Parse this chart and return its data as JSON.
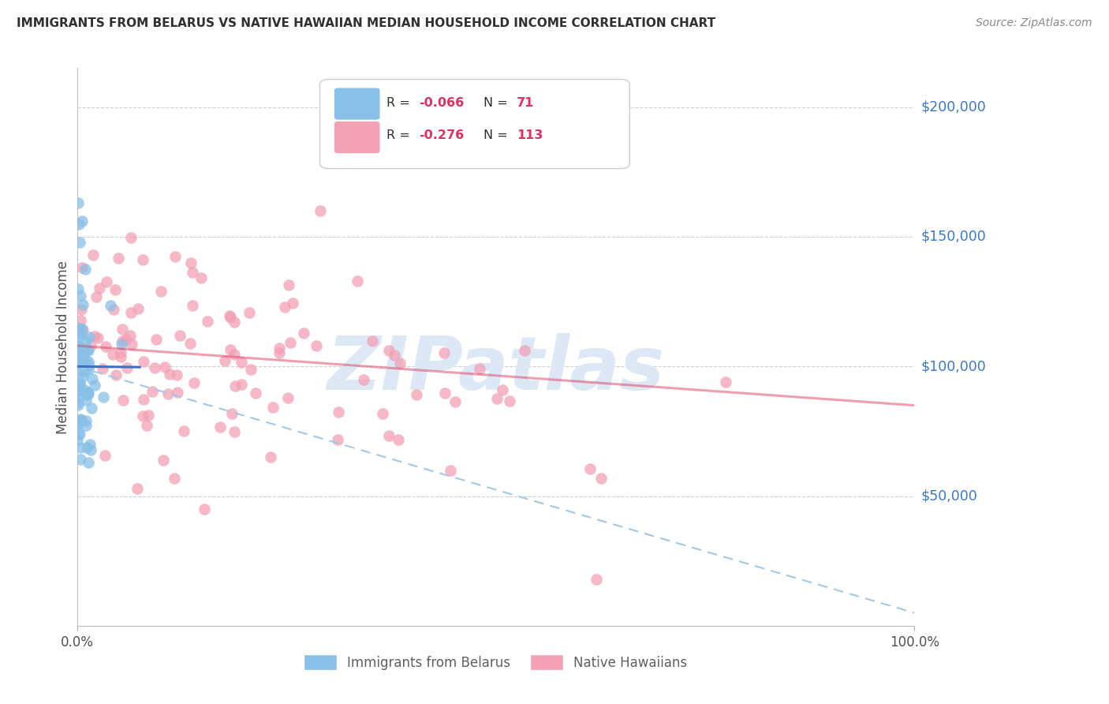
{
  "title": "IMMIGRANTS FROM BELARUS VS NATIVE HAWAIIAN MEDIAN HOUSEHOLD INCOME CORRELATION CHART",
  "source": "Source: ZipAtlas.com",
  "ylabel": "Median Household Income",
  "ylim": [
    0,
    215000
  ],
  "xlim": [
    0.0,
    1.0
  ],
  "blue_color": "#89c0e8",
  "pink_color": "#f4a0b5",
  "trendline_blue_solid_color": "#4070c0",
  "trendline_pink_solid_color": "#e0406080",
  "trendline_blue_dashed_color": "#a0c8e8",
  "watermark_text": "ZIPatlas",
  "watermark_color": "#dce8f5",
  "grid_color": "#d0d0d0",
  "title_color": "#303030",
  "axis_label_color": "#505050",
  "right_tick_color": "#3878d0",
  "source_color": "#888888",
  "legend_text_color": "#303030",
  "bottom_legend_color": "#606060",
  "blue_intercept": 100000,
  "blue_slope": -3500,
  "pink_intercept": 108000,
  "pink_slope": -23000,
  "blue_dashed_intercept": 100000,
  "blue_dashed_slope": -95000
}
